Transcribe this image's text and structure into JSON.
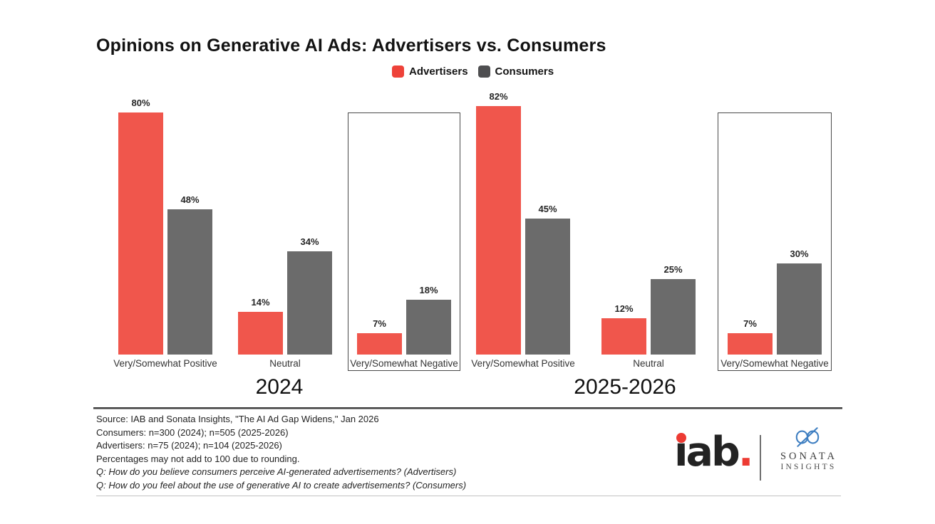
{
  "title": "Opinions on Generative AI Ads: Advertisers vs. Consumers",
  "legend": {
    "items": [
      {
        "label": "Advertisers",
        "color": "#EE4239"
      },
      {
        "label": "Consumers",
        "color": "#4E4E50"
      }
    ]
  },
  "chart_data": [
    {
      "type": "bar",
      "group_label": "2024",
      "categories": [
        "Very/Somewhat Positive",
        "Neutral",
        "Very/Somewhat Negative"
      ],
      "series": [
        {
          "name": "Advertisers",
          "values": [
            80,
            14,
            7
          ],
          "color": "#F0564C"
        },
        {
          "name": "Consumers",
          "values": [
            48,
            34,
            18
          ],
          "color": "#6B6B6B"
        }
      ],
      "value_suffix": "%",
      "ylim": [
        0,
        86
      ],
      "grid": false,
      "highlight_boxed_category": "Very/Somewhat Negative"
    },
    {
      "type": "bar",
      "group_label": "2025-2026",
      "categories": [
        "Very/Somewhat Positive",
        "Neutral",
        "Very/Somewhat Negative"
      ],
      "series": [
        {
          "name": "Advertisers",
          "values": [
            82,
            12,
            7
          ],
          "color": "#F0564C"
        },
        {
          "name": "Consumers",
          "values": [
            45,
            25,
            30
          ],
          "color": "#6B6B6B"
        }
      ],
      "value_suffix": "%",
      "ylim": [
        0,
        86
      ],
      "grid": false,
      "highlight_boxed_category": "Very/Somewhat Negative"
    }
  ],
  "footer": {
    "lines": [
      "Source: IAB and Sonata Insights, \"The AI Ad Gap Widens,\" Jan 2026",
      "Consumers: n=300 (2024); n=505 (2025-2026)",
      "Advertisers: n=75 (2024); n=104 (2025-2026)",
      "Percentages may not add to 100 due to rounding.",
      "Q: How do you believe consumers perceive AI-generated advertisements? (Advertisers)",
      "Q: How do you feel about the use of generative AI to create advertisements? (Consumers)"
    ]
  },
  "branding": {
    "iab_text": "ıab",
    "iab_period": ".",
    "iab_red": "#ED3B33",
    "sonata_line1": "SONATA",
    "sonata_line2": "INSIGHTS",
    "sonata_blue": "#3F7FC1"
  }
}
